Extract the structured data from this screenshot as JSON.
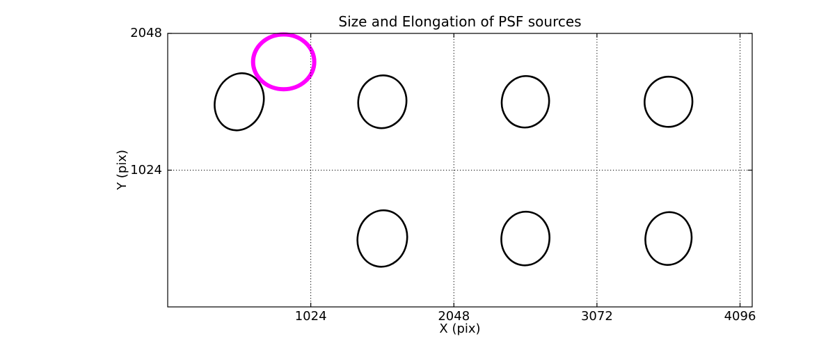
{
  "figure": {
    "background": "#ffffff",
    "frame_color": "#000000"
  },
  "chart_data": {
    "type": "scatter",
    "title": "Size and Elongation of PSF sources",
    "xlabel": "X (pix)",
    "ylabel": "Y (pix)",
    "xlim": [
      0,
      4183
    ],
    "ylim": [
      0,
      2048
    ],
    "xticks": [
      1024,
      2048,
      3072,
      4096
    ],
    "yticks": [
      1024,
      2048
    ],
    "grid": {
      "x_lines": [
        1024,
        2048,
        3072,
        4096
      ],
      "y_lines": [
        1024
      ],
      "style": "dotted",
      "color": "#000000",
      "on_top_of_marks": true
    },
    "legend": null,
    "colors": {
      "normal_ellipse": "#000000",
      "highlighted_ellipse": "#ff00ff"
    },
    "ellipses": [
      {
        "x": 512,
        "y": 1536,
        "rx": 172,
        "ry": 217,
        "angle": 18,
        "role": "normal"
      },
      {
        "x": 1536,
        "y": 1536,
        "rx": 172,
        "ry": 198,
        "angle": 10,
        "role": "normal"
      },
      {
        "x": 2560,
        "y": 1536,
        "rx": 169,
        "ry": 193,
        "angle": 10,
        "role": "normal"
      },
      {
        "x": 3584,
        "y": 1536,
        "rx": 171,
        "ry": 188,
        "angle": 6,
        "role": "normal"
      },
      {
        "x": 1536,
        "y": 512,
        "rx": 177,
        "ry": 212,
        "angle": 10,
        "role": "normal"
      },
      {
        "x": 2560,
        "y": 512,
        "rx": 172,
        "ry": 201,
        "angle": 6,
        "role": "normal"
      },
      {
        "x": 3584,
        "y": 512,
        "rx": 165,
        "ry": 198,
        "angle": 8,
        "role": "normal"
      },
      {
        "x": 830,
        "y": 1835,
        "rx": 219,
        "ry": 205,
        "angle": 0,
        "role": "highlighted"
      }
    ],
    "linewidths": {
      "normal": 2.6,
      "highlighted": 6
    }
  }
}
